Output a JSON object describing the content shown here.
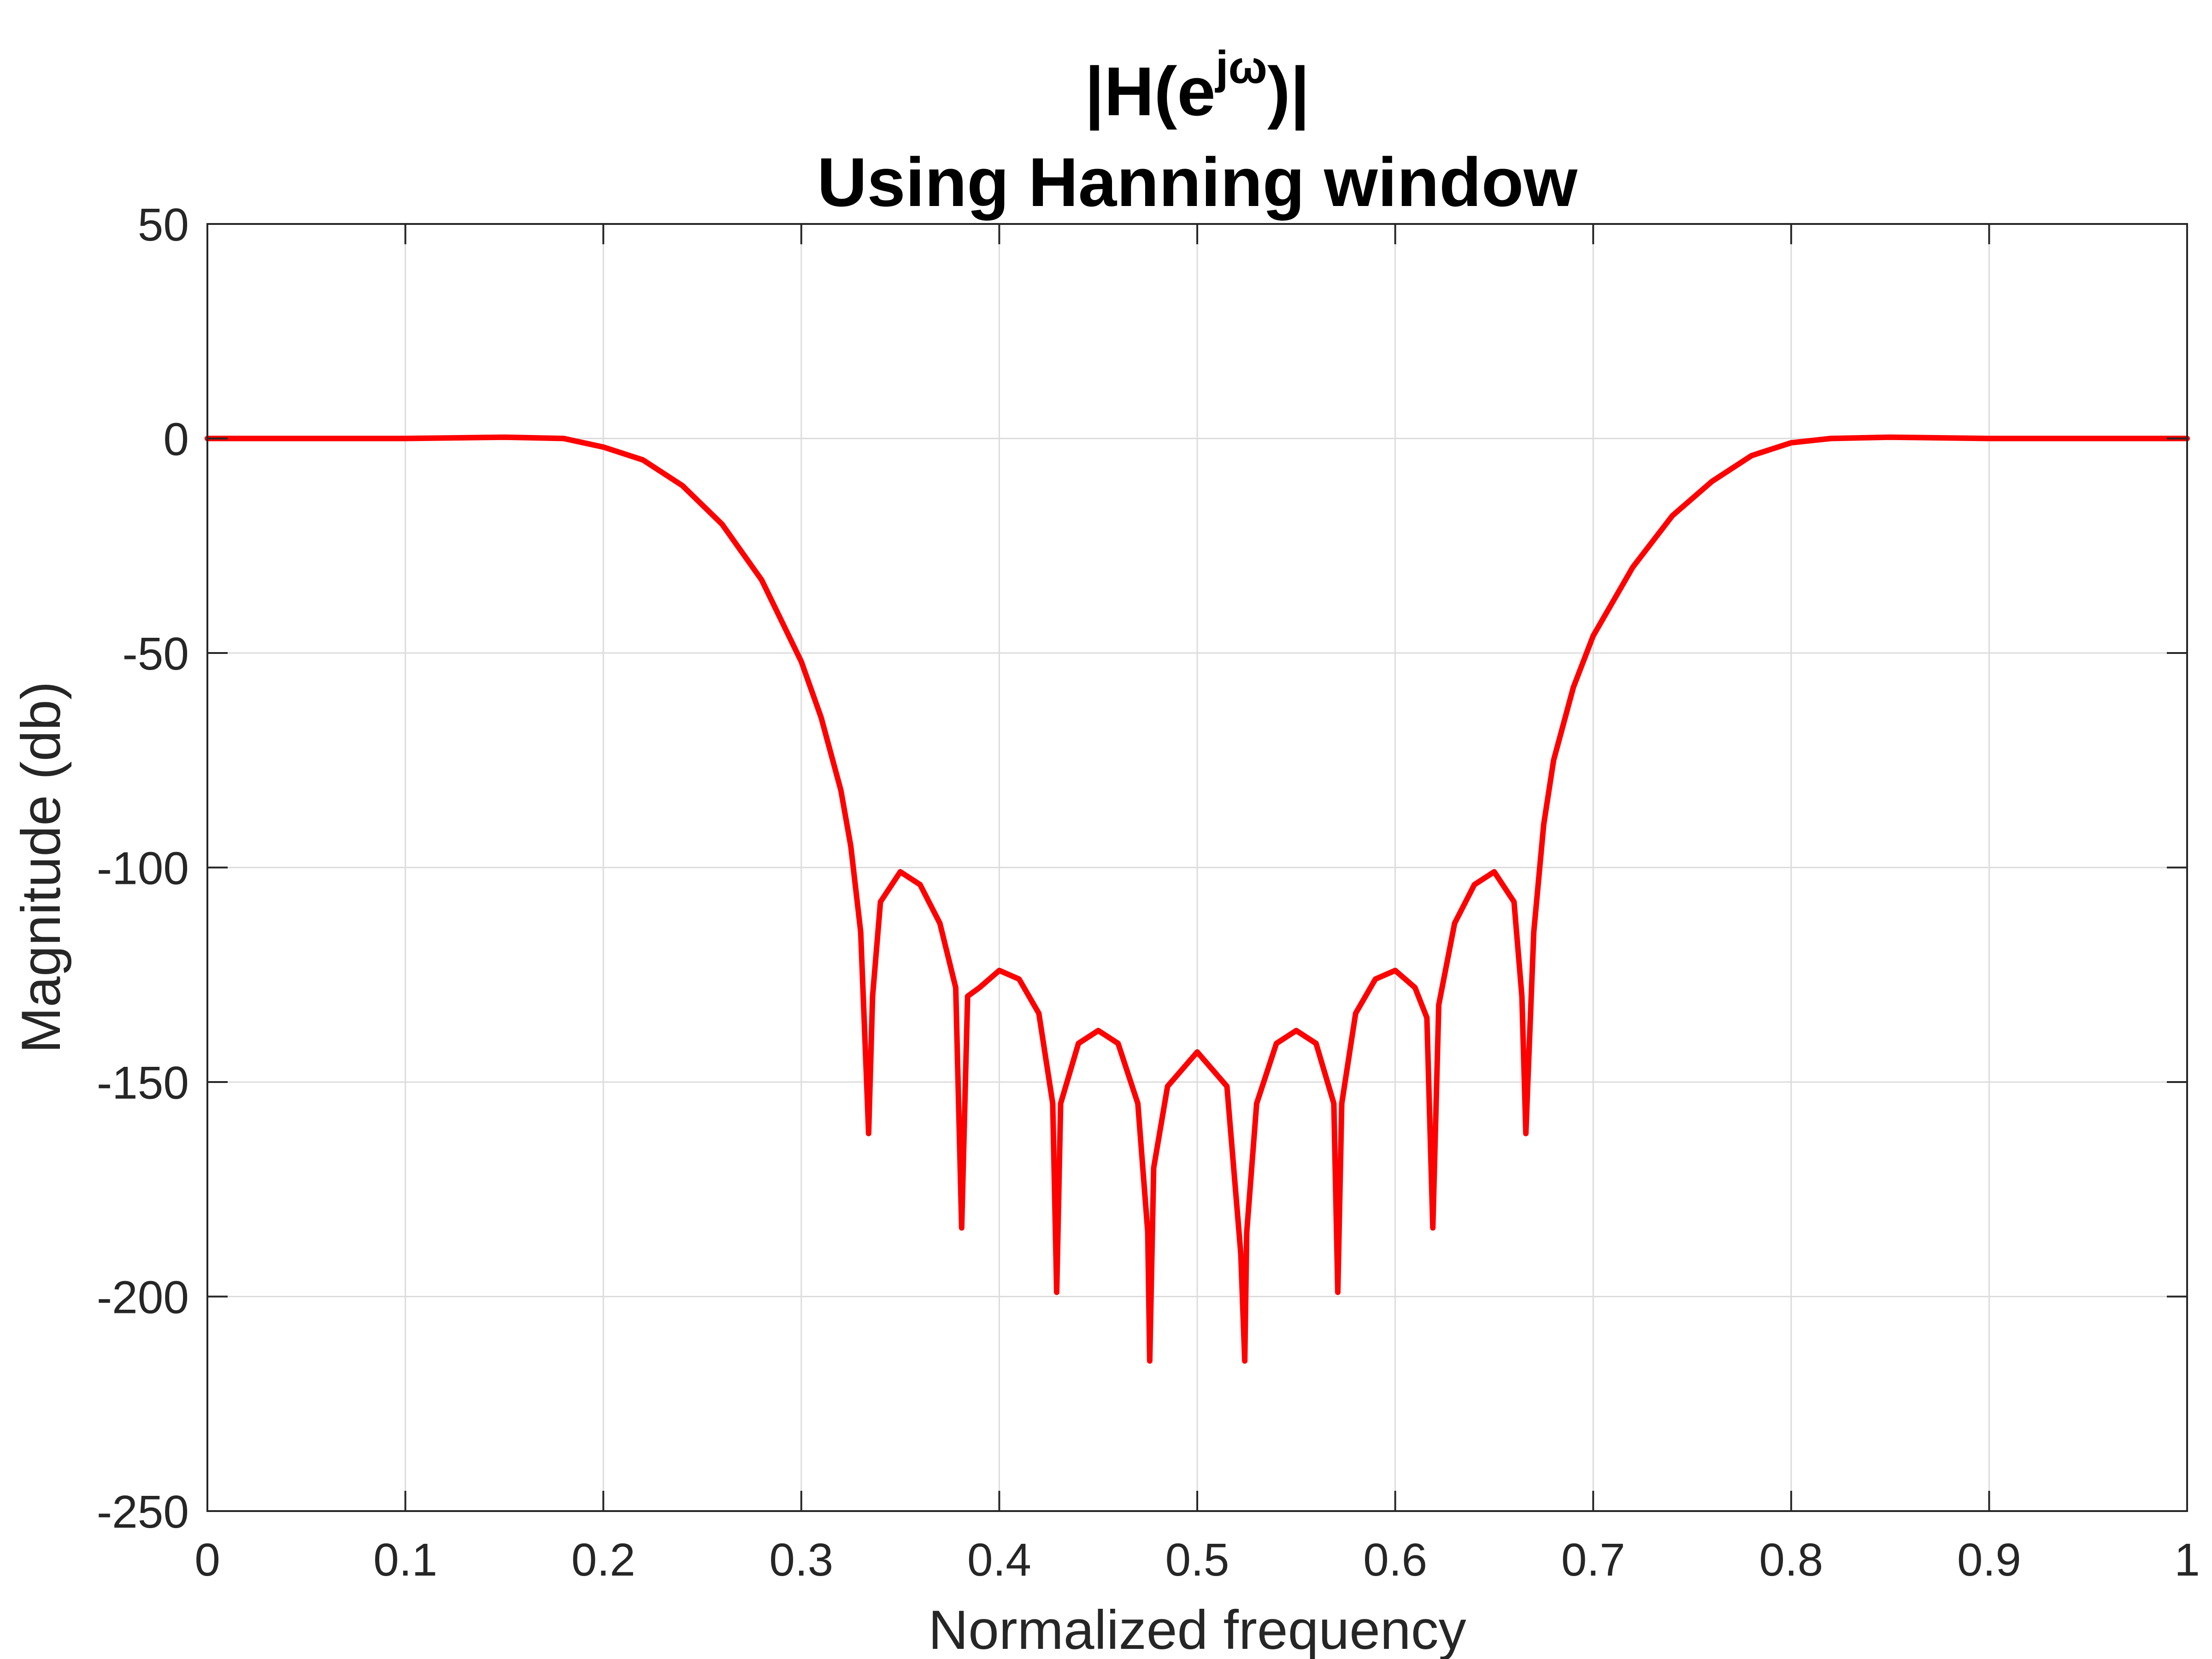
{
  "chart_data": {
    "type": "line",
    "title": {
      "line1_prefix": "|H(e",
      "line1_superscript": "jω",
      "line1_suffix": ")|",
      "line2": "Using Hanning window"
    },
    "xlabel": "Normalized frequency",
    "ylabel": "Magnitude (db)",
    "xlim": [
      0,
      1
    ],
    "ylim": [
      -250,
      50
    ],
    "x_ticks": [
      0,
      0.1,
      0.2,
      0.3,
      0.4,
      0.5,
      0.6,
      0.7,
      0.8,
      0.9,
      1
    ],
    "x_tick_labels": [
      "0",
      "0.1",
      "0.2",
      "0.3",
      "0.4",
      "0.5",
      "0.6",
      "0.7",
      "0.8",
      "0.9",
      "1"
    ],
    "y_ticks": [
      50,
      0,
      -50,
      -100,
      -150,
      -200,
      -250
    ],
    "y_tick_labels": [
      "50",
      "0",
      "-50",
      "-100",
      "-150",
      "-200",
      "-250"
    ],
    "grid": true,
    "line_color": "#ff0000",
    "series": [
      {
        "x": [
          0,
          0.05,
          0.1,
          0.15,
          0.18,
          0.2,
          0.22,
          0.24,
          0.26,
          0.28,
          0.3,
          0.31,
          0.32,
          0.325,
          0.33,
          0.333,
          0.334,
          0.336,
          0.34,
          0.35,
          0.36,
          0.37,
          0.378,
          0.381,
          0.384,
          0.39,
          0.4,
          0.41,
          0.42,
          0.427,
          0.429,
          0.431,
          0.44,
          0.45,
          0.46,
          0.47,
          0.475,
          0.476,
          0.478,
          0.485,
          0.5,
          0.515,
          0.522,
          0.524,
          0.525,
          0.53,
          0.54,
          0.55,
          0.56,
          0.569,
          0.571,
          0.573,
          0.58,
          0.59,
          0.6,
          0.61,
          0.616,
          0.619,
          0.622,
          0.63,
          0.64,
          0.65,
          0.66,
          0.664,
          0.666,
          0.667,
          0.67,
          0.675,
          0.68,
          0.69,
          0.7,
          0.72,
          0.74,
          0.76,
          0.78,
          0.8,
          0.82,
          0.85,
          0.9,
          0.95,
          1
        ],
        "y": [
          0,
          0,
          0,
          0.3,
          0,
          -2,
          -5,
          -11,
          -20,
          -33,
          -52,
          -65,
          -82,
          -95,
          -115,
          -150,
          -162,
          -130,
          -108,
          -101,
          -104,
          -113,
          -128,
          -184,
          -130,
          -128,
          -124,
          -126,
          -134,
          -155,
          -199,
          -155,
          -141,
          -138,
          -141,
          -155,
          -185,
          -215,
          -170,
          -151,
          -143,
          -151,
          -190,
          -215,
          -185,
          -155,
          -141,
          -138,
          -141,
          -155,
          -199,
          -155,
          -134,
          -126,
          -124,
          -128,
          -135,
          -184,
          -132,
          -113,
          -104,
          -101,
          -108,
          -130,
          -162,
          -150,
          -115,
          -90,
          -75,
          -58,
          -46,
          -30,
          -18,
          -10,
          -4,
          -1,
          0,
          0.3,
          0,
          0,
          0
        ]
      }
    ]
  }
}
